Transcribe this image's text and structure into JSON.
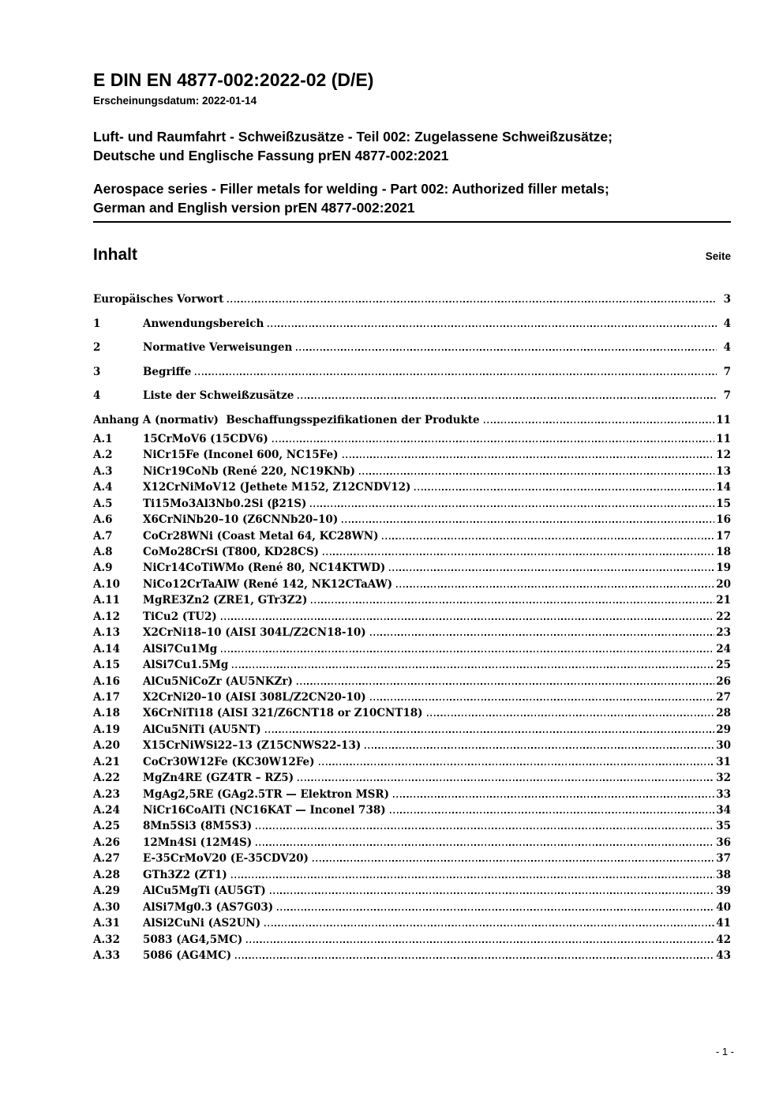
{
  "colors": {
    "text": "#000000",
    "background": "#ffffff"
  },
  "document": {
    "title": "E DIN EN 4877-002:2022-02 (D/E)",
    "publication_date": "Erscheinungsdatum: 2022-01-14",
    "german_title_line1": "Luft- und Raumfahrt - Schweißzusätze - Teil 002: Zugelassene Schweißzusätze;",
    "german_title_line2": "Deutsche und Englische Fassung prEN 4877-002:2021",
    "english_title_line1": "Aerospace series - Filler metals for welding - Part 002: Authorized filler metals;",
    "english_title_line2": "German and English version prEN 4877-002:2021",
    "footer_page_number": "- 1 -"
  },
  "toc": {
    "heading": "Inhalt",
    "page_column_label": "Seite",
    "sections": [
      {
        "num": "",
        "title": "Europäisches Vorwort",
        "page": "3"
      },
      {
        "num": "1",
        "title": "Anwendungsbereich",
        "page": "4"
      },
      {
        "num": "2",
        "title": "Normative Verweisungen",
        "page": "4"
      },
      {
        "num": "3",
        "title": "Begriffe",
        "page": "7"
      },
      {
        "num": "4",
        "title": "Liste der Schweißzusätze",
        "page": "7"
      }
    ],
    "annex": {
      "header": {
        "num": "",
        "title": "Anhang A (normativ)  Beschaffungsspezifikationen der Produkte",
        "page": "11"
      },
      "items": [
        {
          "num": "A.1",
          "title": "15CrMoV6 (15CDV6)",
          "page": "11"
        },
        {
          "num": "A.2",
          "title": "NiCr15Fe (Inconel 600, NC15Fe)",
          "page": "12"
        },
        {
          "num": "A.3",
          "title": "NiCr19CoNb (René 220, NC19KNb)",
          "page": "13"
        },
        {
          "num": "A.4",
          "title": "X12CrNiMoV12 (Jethete M152, Z12CNDV12)",
          "page": "14"
        },
        {
          "num": "A.5",
          "title": "Ti15Mo3Al3Nb0.2Si (β21S)",
          "page": "15"
        },
        {
          "num": "A.6",
          "title": "X6CrNiNb20–10 (Z6CNNb20–10)",
          "page": "16"
        },
        {
          "num": "A.7",
          "title": "CoCr28WNi (Coast Metal 64, KC28WN)",
          "page": "17"
        },
        {
          "num": "A.8",
          "title": "CoMo28CrSi (T800, KD28CS)",
          "page": "18"
        },
        {
          "num": "A.9",
          "title": "NiCr14CoTiWMo (René 80, NC14KTWD)",
          "page": "19"
        },
        {
          "num": "A.10",
          "title": "NiCo12CrTaAlW (René 142, NK12CTaAW)",
          "page": "20"
        },
        {
          "num": "A.11",
          "title": "MgRE3Zn2 (ZRE1, GTr3Z2)",
          "page": "21"
        },
        {
          "num": "A.12",
          "title": "TiCu2 (TU2)",
          "page": "22"
        },
        {
          "num": "A.13",
          "title": "X2CrNi18–10 (AISI 304L/Z2CN18-10)",
          "page": "23"
        },
        {
          "num": "A.14",
          "title": "AlSi7Cu1Mg",
          "page": "24"
        },
        {
          "num": "A.15",
          "title": "AlSi7Cu1.5Mg",
          "page": "25"
        },
        {
          "num": "A.16",
          "title": "AlCu5NiCoZr (AU5NKZr)",
          "page": "26"
        },
        {
          "num": "A.17",
          "title": "X2CrNi20–10 (AISI 308L/Z2CN20-10)",
          "page": "27"
        },
        {
          "num": "A.18",
          "title": "X6CrNiTi18 (AISI 321/Z6CNT18 or Z10CNT18)",
          "page": "28"
        },
        {
          "num": "A.19",
          "title": "AlCu5NiTi (AU5NT)",
          "page": "29"
        },
        {
          "num": "A.20",
          "title": "X15CrNiWSi22–13 (Z15CNWS22-13)",
          "page": "30"
        },
        {
          "num": "A.21",
          "title": "CoCr30W12Fe (KC30W12Fe)",
          "page": "31"
        },
        {
          "num": "A.22",
          "title": "MgZn4RE (GZ4TR – RZ5)",
          "page": "32"
        },
        {
          "num": "A.23",
          "title": "MgAg2,5RE (GAg2.5TR — Elektron MSR)",
          "page": "33"
        },
        {
          "num": "A.24",
          "title": "NiCr16CoAlTi (NC16KAT — Inconel 738)",
          "page": "34"
        },
        {
          "num": "A.25",
          "title": "8Mn5Si3 (8M5S3)",
          "page": "35"
        },
        {
          "num": "A.26",
          "title": "12Mn4Si (12M4S)",
          "page": "36"
        },
        {
          "num": "A.27",
          "title": "E-35CrMoV20 (E-35CDV20)",
          "page": "37"
        },
        {
          "num": "A.28",
          "title": "GTh3Z2 (ZT1)",
          "page": "38"
        },
        {
          "num": "A.29",
          "title": "AlCu5MgTi (AU5GT)",
          "page": "39"
        },
        {
          "num": "A.30",
          "title": "AlSi7Mg0.3 (AS7G03)",
          "page": "40"
        },
        {
          "num": "A.31",
          "title": "AlSi2CuNi (AS2UN)",
          "page": "41"
        },
        {
          "num": "A.32",
          "title": "5083 (AG4,5MC)",
          "page": "42"
        },
        {
          "num": "A.33",
          "title": "5086 (AG4MC)",
          "page": "43"
        }
      ]
    }
  }
}
